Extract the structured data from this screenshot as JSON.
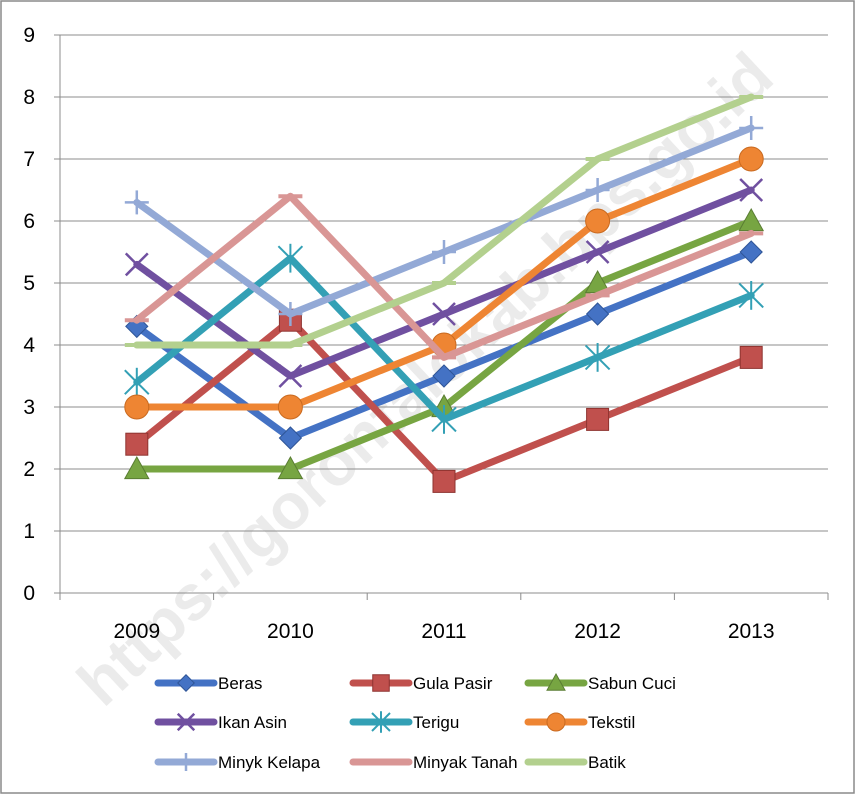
{
  "watermark": "https://gorontalokab.bps.go.id",
  "chart_data": {
    "type": "line",
    "categories": [
      "2009",
      "2010",
      "2011",
      "2012",
      "2013"
    ],
    "ylim": [
      0,
      9
    ],
    "yticks": [
      "0",
      "1",
      "2",
      "3",
      "4",
      "5",
      "6",
      "7",
      "8",
      "9"
    ],
    "grid": true,
    "legend_position": "bottom",
    "title": "",
    "xlabel": "",
    "ylabel": "",
    "series": [
      {
        "name": "Beras",
        "values": [
          4.3,
          2.5,
          3.5,
          4.5,
          5.5
        ],
        "color": "#4472C4",
        "marker": "diamond"
      },
      {
        "name": "Gula Pasir",
        "values": [
          2.4,
          4.4,
          1.8,
          2.8,
          3.8
        ],
        "color": "#C0504D",
        "marker": "square"
      },
      {
        "name": "Sabun Cuci",
        "values": [
          2.0,
          2.0,
          3.0,
          5.0,
          6.0
        ],
        "color": "#77A542",
        "marker": "triangle"
      },
      {
        "name": "Ikan Asin",
        "values": [
          5.3,
          3.5,
          4.5,
          5.5,
          6.5
        ],
        "color": "#7050A0",
        "marker": "x"
      },
      {
        "name": "Terigu",
        "values": [
          3.4,
          5.4,
          2.8,
          3.8,
          4.8
        ],
        "color": "#33A0B5",
        "marker": "star"
      },
      {
        "name": "Tekstil",
        "values": [
          3.0,
          3.0,
          4.0,
          6.0,
          7.0
        ],
        "color": "#EE8533",
        "marker": "circle"
      },
      {
        "name": "Minyk Kelapa",
        "values": [
          6.3,
          4.5,
          5.5,
          6.5,
          7.5
        ],
        "color": "#93A9D6",
        "marker": "plus"
      },
      {
        "name": "Minyak Tanah",
        "values": [
          4.4,
          6.4,
          3.8,
          4.8,
          5.8
        ],
        "color": "#D99695",
        "marker": "dash"
      },
      {
        "name": "Batik",
        "values": [
          4.0,
          4.0,
          5.0,
          7.0,
          8.0
        ],
        "color": "#B3D08E",
        "marker": "dash"
      }
    ]
  }
}
